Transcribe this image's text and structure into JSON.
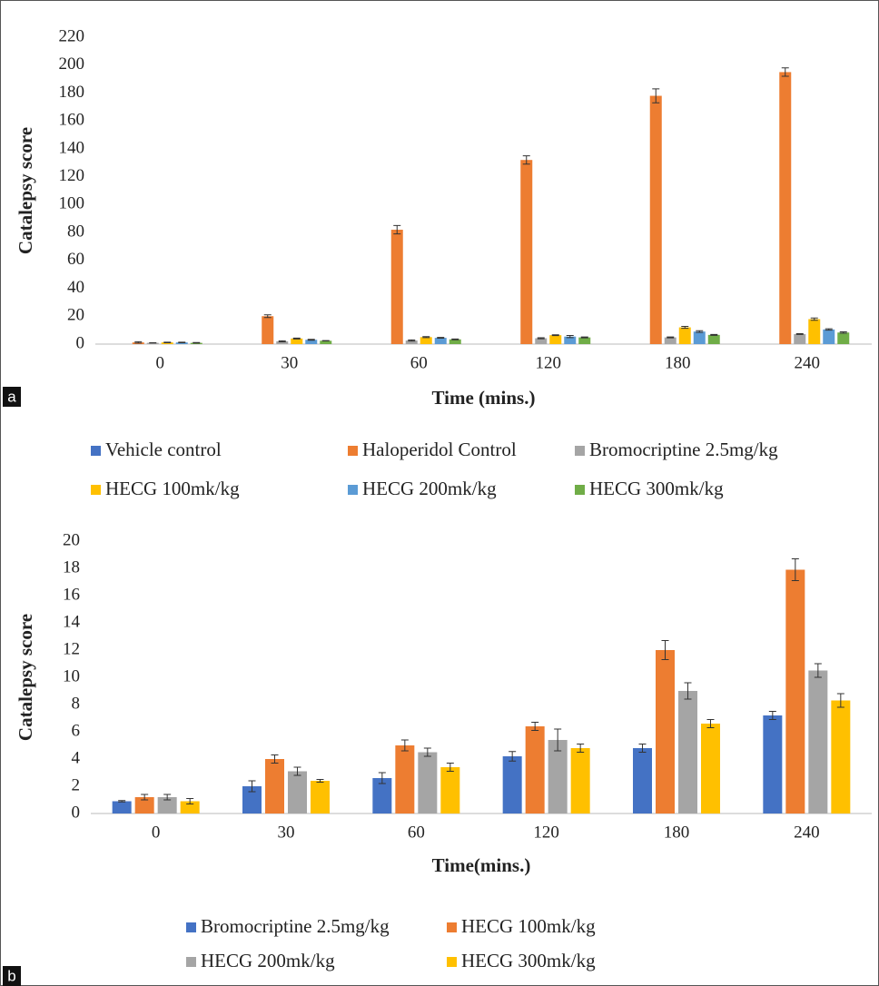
{
  "chart_data": [
    {
      "type": "bar",
      "label": "a",
      "ylabel": "Catalepsy score",
      "xlabel": "Time (mins.)",
      "categories": [
        "0",
        "30",
        "60",
        "120",
        "180",
        "240"
      ],
      "ylim": [
        0,
        220
      ],
      "yticks": [
        0,
        20,
        40,
        60,
        80,
        100,
        120,
        140,
        160,
        180,
        200,
        220
      ],
      "grid": false,
      "series": [
        {
          "name": "Vehicle control",
          "color": "#4472c4",
          "values": [
            0,
            0,
            0,
            0,
            0,
            0
          ],
          "errors": [
            0,
            0,
            0,
            0,
            0,
            0
          ]
        },
        {
          "name": "Haloperidol Control",
          "color": "#ed7d31",
          "values": [
            1.2,
            20,
            82,
            132,
            178,
            195
          ],
          "errors": [
            0.5,
            1,
            3,
            3,
            5,
            3
          ]
        },
        {
          "name": "Bromocriptine 2.5mg/kg",
          "color": "#a5a5a5",
          "values": [
            0.9,
            2,
            2.6,
            4.2,
            4.8,
            7.2
          ],
          "errors": [
            0.05,
            0.4,
            0.4,
            0.35,
            0.3,
            0.3
          ]
        },
        {
          "name": "HECG 100mk/kg",
          "color": "#ffc000",
          "values": [
            1.2,
            4,
            5,
            6.4,
            12,
            17.9
          ],
          "errors": [
            0.2,
            0.3,
            0.4,
            0.3,
            0.7,
            0.8
          ]
        },
        {
          "name": "HECG 200mk/kg",
          "color": "#5b9bd5",
          "values": [
            1.2,
            3.1,
            4.5,
            5.4,
            9,
            10.5
          ],
          "errors": [
            0.2,
            0.3,
            0.3,
            0.8,
            0.6,
            0.5
          ]
        },
        {
          "name": "HECG 300mk/kg",
          "color": "#70ad47",
          "values": [
            0.9,
            2.4,
            3.4,
            4.8,
            6.6,
            8.3
          ],
          "errors": [
            0.2,
            0.1,
            0.3,
            0.3,
            0.3,
            0.5
          ]
        }
      ]
    },
    {
      "type": "bar",
      "label": "b",
      "ylabel": "Catalepsy score",
      "xlabel": "Time(mins.)",
      "categories": [
        "0",
        "30",
        "60",
        "120",
        "180",
        "240"
      ],
      "ylim": [
        0,
        20
      ],
      "yticks": [
        0,
        2,
        4,
        6,
        8,
        10,
        12,
        14,
        16,
        18,
        20
      ],
      "grid": false,
      "series": [
        {
          "name": "Bromocriptine 2.5mg/kg",
          "color": "#4472c4",
          "values": [
            0.9,
            2,
            2.6,
            4.2,
            4.8,
            7.2
          ],
          "errors": [
            0.05,
            0.4,
            0.4,
            0.35,
            0.3,
            0.3
          ]
        },
        {
          "name": "HECG 100mk/kg",
          "color": "#ed7d31",
          "values": [
            1.2,
            4,
            5,
            6.4,
            12,
            17.9
          ],
          "errors": [
            0.2,
            0.3,
            0.4,
            0.3,
            0.7,
            0.8
          ]
        },
        {
          "name": "HECG 200mk/kg",
          "color": "#a5a5a5",
          "values": [
            1.2,
            3.1,
            4.5,
            5.4,
            9,
            10.5
          ],
          "errors": [
            0.2,
            0.3,
            0.3,
            0.8,
            0.6,
            0.5
          ]
        },
        {
          "name": "HECG 300mk/kg",
          "color": "#ffc000",
          "values": [
            0.9,
            2.4,
            3.4,
            4.8,
            6.6,
            8.3
          ],
          "errors": [
            0.2,
            0.1,
            0.3,
            0.3,
            0.3,
            0.5
          ]
        }
      ]
    }
  ]
}
